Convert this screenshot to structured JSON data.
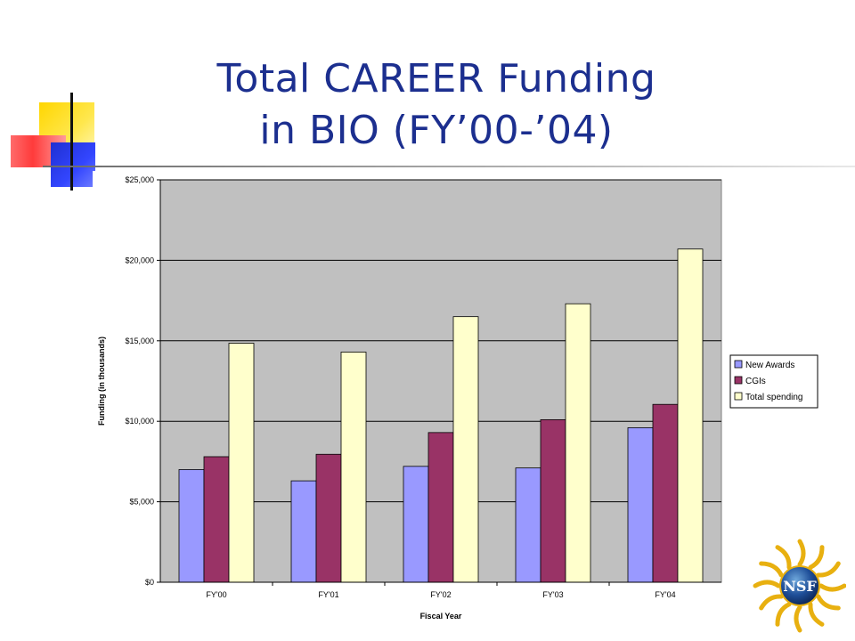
{
  "slide": {
    "title_line1": "Total CAREER Funding",
    "title_line2": "in BIO (FY’00-’04)"
  },
  "logo": {
    "text": "NSF"
  },
  "colors": {
    "title": "#1c2f8f",
    "plot_background": "#c0c0c0",
    "new_awards": "#9999ff",
    "cgis": "#993366",
    "total_spending": "#ffffcc"
  },
  "chart_data": {
    "type": "bar",
    "title": "",
    "xlabel": "Fiscal Year",
    "ylabel": "Funding (in thousands)",
    "categories": [
      "FY'00",
      "FY'01",
      "FY'02",
      "FY'03",
      "FY'04"
    ],
    "ylim": [
      0,
      25000
    ],
    "yticks": [
      "$0",
      "$5,000",
      "$10,000",
      "$15,000",
      "$20,000",
      "$25,000"
    ],
    "ytick_values": [
      0,
      5000,
      10000,
      15000,
      20000,
      25000
    ],
    "grid": true,
    "legend_position": "right",
    "series": [
      {
        "name": "New Awards",
        "color": "#9999ff",
        "values": [
          7000,
          6300,
          7200,
          7100,
          9600
        ]
      },
      {
        "name": "CGIs",
        "color": "#993366",
        "values": [
          7800,
          7950,
          9300,
          10100,
          11050
        ]
      },
      {
        "name": "Total spending",
        "color": "#ffffcc",
        "values": [
          14850,
          14300,
          16500,
          17300,
          20700
        ]
      }
    ]
  }
}
